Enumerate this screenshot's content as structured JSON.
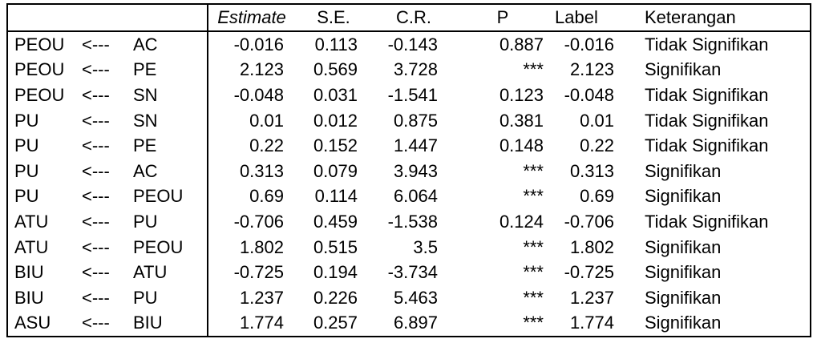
{
  "headers": {
    "estimate": "Estimate",
    "se": "S.E.",
    "cr": "C.R.",
    "p": "P",
    "label": "Label",
    "keterangan": "Keterangan"
  },
  "rows": [
    {
      "dep": "PEOU",
      "arrow": "<---",
      "ind": "AC",
      "estimate": "-0.016",
      "se": "0.113",
      "cr": "-0.143",
      "p": "0.887",
      "label": "-0.016",
      "keterangan": "Tidak Signifikan"
    },
    {
      "dep": "PEOU",
      "arrow": "<---",
      "ind": "PE",
      "estimate": "2.123",
      "se": "0.569",
      "cr": "3.728",
      "p": "***",
      "label": "2.123",
      "keterangan": "Signifikan"
    },
    {
      "dep": "PEOU",
      "arrow": "<---",
      "ind": "SN",
      "estimate": "-0.048",
      "se": "0.031",
      "cr": "-1.541",
      "p": "0.123",
      "label": "-0.048",
      "keterangan": "Tidak Signifikan"
    },
    {
      "dep": "PU",
      "arrow": "<---",
      "ind": "SN",
      "estimate": "0.01",
      "se": "0.012",
      "cr": "0.875",
      "p": "0.381",
      "label": "0.01",
      "keterangan": "Tidak Signifikan"
    },
    {
      "dep": "PU",
      "arrow": "<---",
      "ind": "PE",
      "estimate": "0.22",
      "se": "0.152",
      "cr": "1.447",
      "p": "0.148",
      "label": "0.22",
      "keterangan": "Tidak Signifikan"
    },
    {
      "dep": "PU",
      "arrow": "<---",
      "ind": "AC",
      "estimate": "0.313",
      "se": "0.079",
      "cr": "3.943",
      "p": "***",
      "label": "0.313",
      "keterangan": "Signifikan"
    },
    {
      "dep": "PU",
      "arrow": "<---",
      "ind": "PEOU",
      "estimate": "0.69",
      "se": "0.114",
      "cr": "6.064",
      "p": "***",
      "label": "0.69",
      "keterangan": "Signifikan"
    },
    {
      "dep": "ATU",
      "arrow": "<---",
      "ind": "PU",
      "estimate": "-0.706",
      "se": "0.459",
      "cr": "-1.538",
      "p": "0.124",
      "label": "-0.706",
      "keterangan": "Tidak Signifikan"
    },
    {
      "dep": "ATU",
      "arrow": "<---",
      "ind": "PEOU",
      "estimate": "1.802",
      "se": "0.515",
      "cr": "3.5",
      "p": "***",
      "label": "1.802",
      "keterangan": "Signifikan"
    },
    {
      "dep": "BIU",
      "arrow": "<---",
      "ind": "ATU",
      "estimate": "-0.725",
      "se": "0.194",
      "cr": "-3.734",
      "p": "***",
      "label": "-0.725",
      "keterangan": "Signifikan"
    },
    {
      "dep": "BIU",
      "arrow": "<---",
      "ind": "PU",
      "estimate": "1.237",
      "se": "0.226",
      "cr": "5.463",
      "p": "***",
      "label": "1.237",
      "keterangan": "Signifikan"
    },
    {
      "dep": "ASU",
      "arrow": "<---",
      "ind": "BIU",
      "estimate": "1.774",
      "se": "0.257",
      "cr": "6.897",
      "p": "***",
      "label": "1.774",
      "keterangan": "Signifikan"
    }
  ]
}
